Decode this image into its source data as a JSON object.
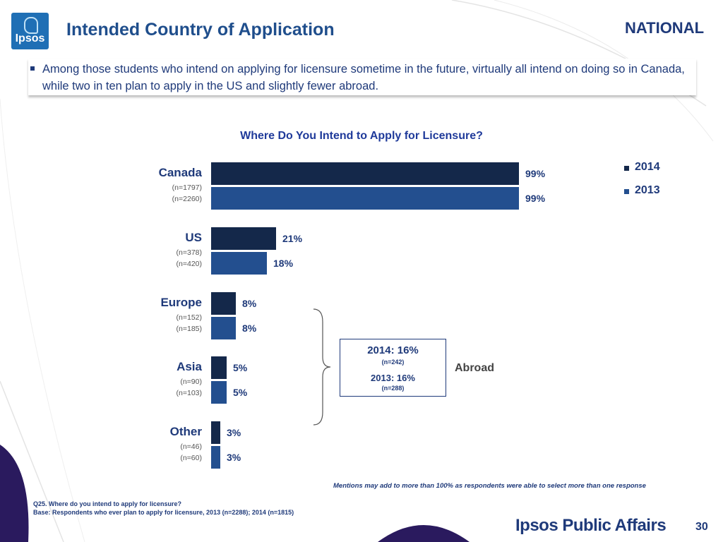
{
  "header": {
    "logo_text": "Ipsos",
    "title": "Intended Country of Application",
    "region": "NATIONAL"
  },
  "bullet": {
    "text": "Among those students who intend on applying for licensure sometime in the future, virtually all intend on doing so in Canada, while two in ten plan to apply in the US and slightly fewer abroad."
  },
  "chart_data": {
    "type": "bar",
    "orientation": "horizontal",
    "title": "Where Do You Intend to Apply for Licensure?",
    "categories": [
      "Canada",
      "US",
      "Europe",
      "Asia",
      "Other"
    ],
    "n_2014": [
      "(n=1797)",
      "(n=378)",
      "(n=152)",
      "(n=90)",
      "(n=46)"
    ],
    "n_2013": [
      "(n=2260)",
      "(n=420)",
      "(n=185)",
      "(n=103)",
      "(n=60)"
    ],
    "series": [
      {
        "name": "2014",
        "values": [
          99,
          21,
          8,
          5,
          3
        ],
        "color": "#14284a"
      },
      {
        "name": "2013",
        "values": [
          99,
          18,
          8,
          5,
          3
        ],
        "color": "#234f8f"
      }
    ],
    "value_labels_2014": [
      "99%",
      "21%",
      "8%",
      "5%",
      "3%"
    ],
    "value_labels_2013": [
      "99%",
      "18%",
      "8%",
      "5%",
      "3%"
    ],
    "xlim": [
      0,
      100
    ],
    "legend_position": "top-right",
    "grid": false,
    "abroad": {
      "line1": "2014: 16%",
      "n1": "(n=242)",
      "line2": "2013: 16%",
      "n2": "(n=288)",
      "label": "Abroad"
    }
  },
  "footer": {
    "note": "Mentions may add to more than 100% as respondents were able to select more than one response",
    "question": "Q25. Where do you intend to apply for licensure?",
    "base": "Base:  Respondents who ever plan to apply for licensure, 2013 (n=2288); 2014 (n=1815)",
    "brand": "Ipsos Public Affairs",
    "page_number": "30"
  }
}
